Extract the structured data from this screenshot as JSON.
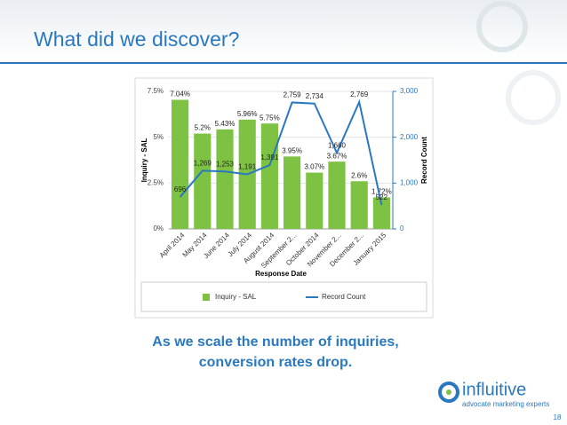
{
  "slide": {
    "title": "What did we discover?",
    "caption": [
      "As we scale the number of inquiries,",
      "conversion rates drop."
    ],
    "logo": {
      "name": "influitive",
      "tagline": "advocate marketing experts"
    },
    "page_number": "18"
  },
  "chart_data": {
    "type": "bar-line",
    "xlabel": "Response Date",
    "ylabel": "Inquiry - SAL",
    "y2label": "Record Count",
    "categories": [
      "April 2014",
      "May 2014",
      "June 2014",
      "July 2014",
      "August 2014",
      "September 2...",
      "October 2014",
      "November 2...",
      "December 2...",
      "January 2015"
    ],
    "series": [
      {
        "name": "Inquiry - SAL",
        "type": "bar",
        "color": "#7dc242",
        "values": [
          7.04,
          5.2,
          5.43,
          5.96,
          5.75,
          3.95,
          3.07,
          3.67,
          2.6,
          1.72
        ],
        "value_labels": [
          "7.04%",
          "5.2%",
          "5.43%",
          "5.96%",
          "5.75%",
          "3.95%",
          "3.07%",
          "3.67%",
          "2.6%",
          "1.72%"
        ]
      },
      {
        "name": "Record Count",
        "type": "line",
        "axis": "y2",
        "color": "#2a78c0",
        "values": [
          696,
          1269,
          1253,
          1191,
          1391,
          2759,
          2734,
          1660,
          2769,
          522
        ],
        "value_labels": [
          "696",
          "1,269",
          "1,253",
          "1,191",
          "1,391",
          "2,759",
          "2,734",
          "1,660",
          "2,769",
          "522"
        ]
      }
    ],
    "ylim": [
      0,
      7.5
    ],
    "yticks": [
      {
        "value": 0,
        "label": "0%"
      },
      {
        "value": 2.5,
        "label": "2.5%"
      },
      {
        "value": 5,
        "label": "5%"
      },
      {
        "value": 7.5,
        "label": "7.5%"
      }
    ],
    "y2lim": [
      0,
      3000
    ],
    "y2ticks": [
      0,
      {
        "value": 1000,
        "label": "1,000"
      },
      {
        "value": 2000,
        "label": "2,000"
      },
      {
        "value": 3000,
        "label": "3,000"
      }
    ],
    "grid": true,
    "legend": "bottom"
  }
}
